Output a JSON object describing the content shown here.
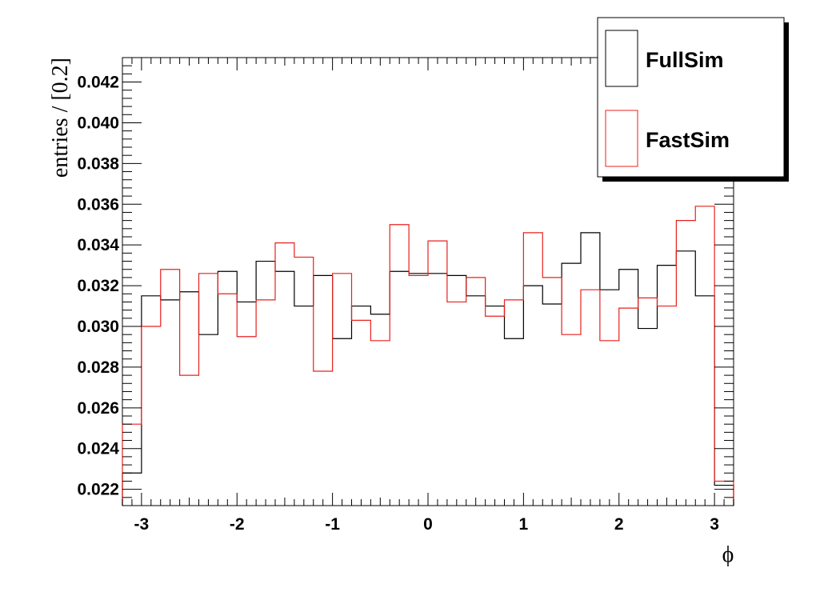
{
  "chart_data": {
    "type": "line",
    "xlabel": "ϕ",
    "ylabel": "entries / [0.2]",
    "xlim": [
      -3.2,
      3.2
    ],
    "ylim": [
      0.0212,
      0.0432
    ],
    "x_ticks": [
      -3,
      -2,
      -1,
      0,
      1,
      2,
      3
    ],
    "x_tick_labels": [
      "-3",
      "-2",
      "-1",
      "0",
      "1",
      "2",
      "3"
    ],
    "y_ticks": [
      0.022,
      0.024,
      0.026,
      0.028,
      0.03,
      0.032,
      0.034,
      0.036,
      0.038,
      0.04,
      0.042
    ],
    "y_tick_labels": [
      "0.022",
      "0.024",
      "0.026",
      "0.028",
      "0.030",
      "0.032",
      "0.034",
      "0.036",
      "0.038",
      "0.040",
      "0.042"
    ],
    "grid": false,
    "legend_position": "top-right",
    "bin_edges": [
      -3.2,
      -3.0,
      -2.8,
      -2.6,
      -2.4,
      -2.2,
      -2.0,
      -1.8,
      -1.6,
      -1.4,
      -1.2,
      -1.0,
      -0.8,
      -0.6,
      -0.4,
      -0.2,
      0.0,
      0.2,
      0.4,
      0.6,
      0.8,
      1.0,
      1.2,
      1.4,
      1.6,
      1.8,
      2.0,
      2.2,
      2.4,
      2.6,
      2.8,
      3.0,
      3.2
    ],
    "series": [
      {
        "name": "FullSim",
        "color": "#000000",
        "values": [
          0.0228,
          0.0315,
          0.0313,
          0.0317,
          0.0296,
          0.0327,
          0.0312,
          0.0332,
          0.0327,
          0.031,
          0.0325,
          0.0294,
          0.031,
          0.0306,
          0.0327,
          0.0326,
          0.0326,
          0.0325,
          0.0315,
          0.031,
          0.0294,
          0.032,
          0.0311,
          0.0331,
          0.0346,
          0.0318,
          0.0328,
          0.0299,
          0.033,
          0.0337,
          0.0315,
          0.0222
        ]
      },
      {
        "name": "FastSim",
        "color": "#e8201e",
        "values": [
          0.0252,
          0.03,
          0.0328,
          0.0276,
          0.0326,
          0.0316,
          0.0295,
          0.0313,
          0.0341,
          0.0334,
          0.0278,
          0.0326,
          0.0303,
          0.0293,
          0.035,
          0.0325,
          0.0342,
          0.0312,
          0.0324,
          0.0305,
          0.0313,
          0.0346,
          0.0324,
          0.0296,
          0.0318,
          0.0293,
          0.0309,
          0.0314,
          0.031,
          0.0352,
          0.0359,
          0.0224
        ]
      }
    ]
  }
}
